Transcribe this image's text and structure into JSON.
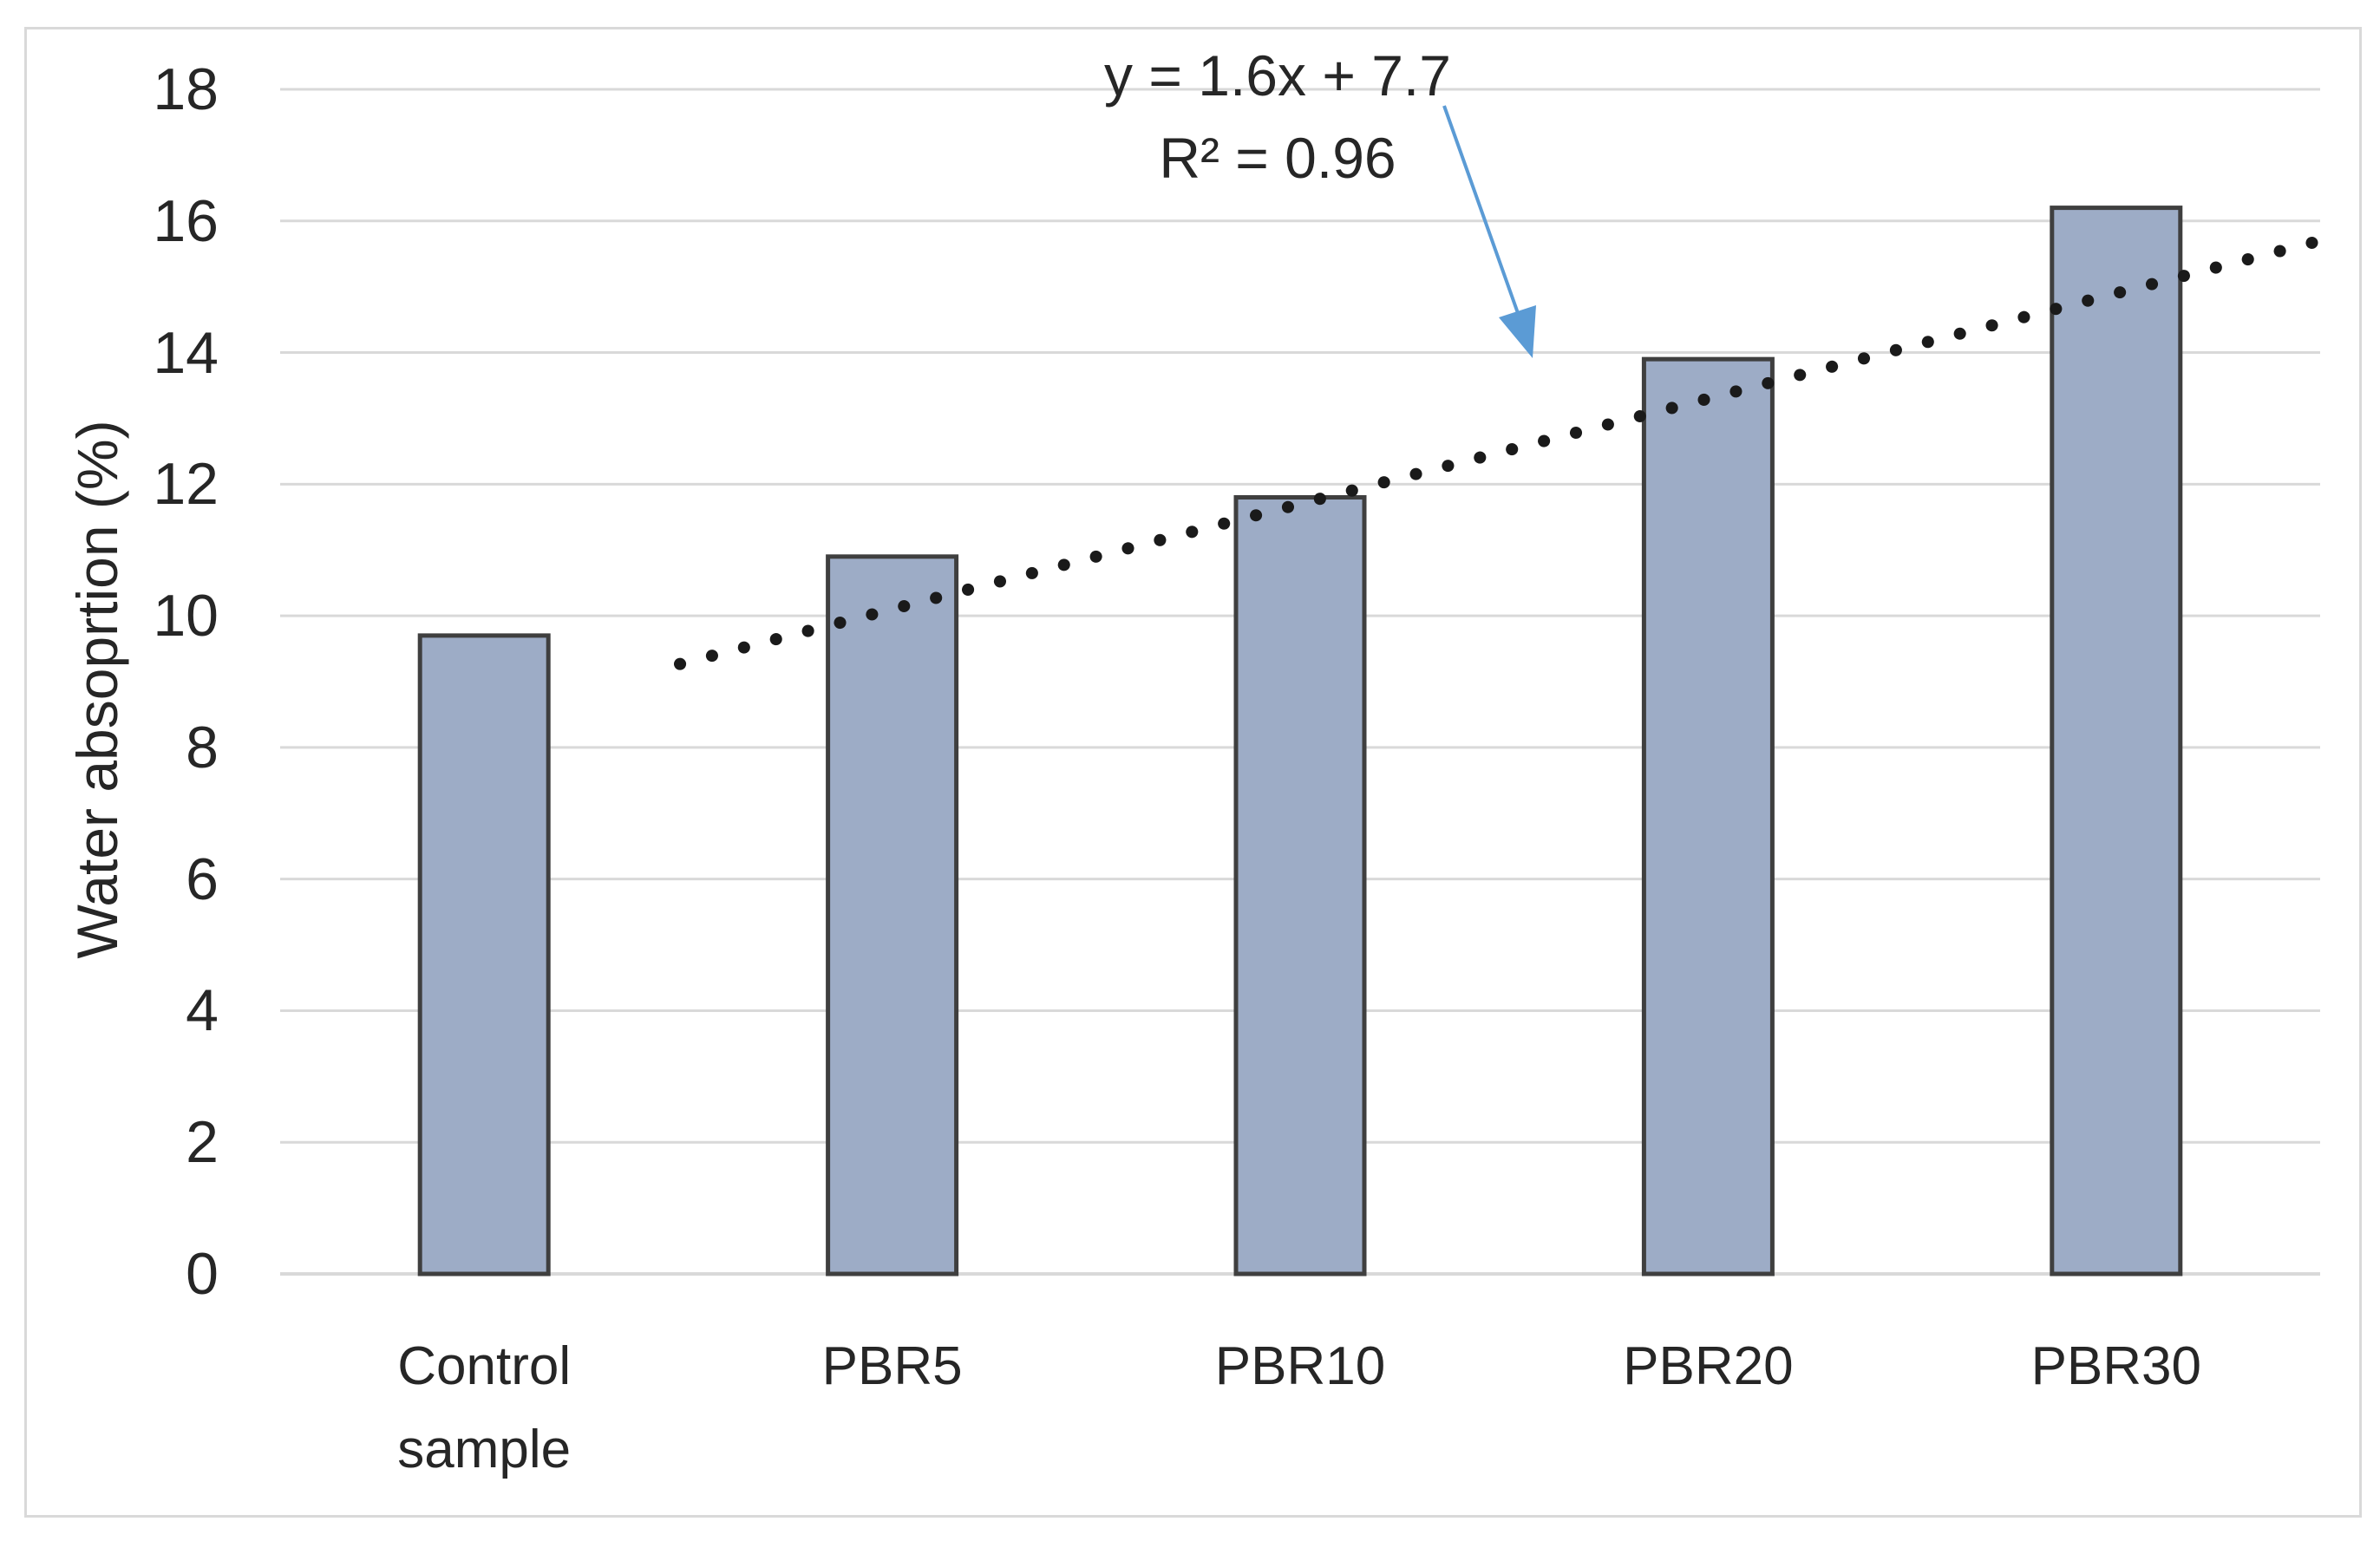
{
  "chart_data": {
    "type": "bar",
    "categories": [
      "Control sample",
      "PBR5",
      "PBR10",
      "PBR20",
      "PBR30"
    ],
    "categories_display": [
      "Control\nsample",
      "PBR5",
      "PBR10",
      "PBR20",
      "PBR30"
    ],
    "values": [
      9.7,
      10.9,
      11.8,
      13.9,
      16.2
    ],
    "title": "",
    "xlabel": "",
    "ylabel": "Water absoprtion (%)",
    "ylim": [
      0,
      18
    ],
    "ytick_step": 2,
    "ytick_labels": [
      "0",
      "2",
      "4",
      "6",
      "8",
      "10",
      "12",
      "14",
      "16",
      "18"
    ],
    "grid": true,
    "legend": "none",
    "trendline": {
      "style": "dotted",
      "slope": 1.6,
      "intercept": 7.7,
      "equation_label": "y = 1.6x + 7.7",
      "r_squared_label": "R² = 0.96"
    }
  },
  "annotation": {
    "line1": "y = 1.6x + 7.7",
    "line2": "R² = 0.96"
  },
  "colors": {
    "bar_fill": "#9dacc6",
    "bar_border": "#3f3f3f",
    "gridline": "#d9d9d9",
    "axis_line": "#d9d9d9",
    "chart_border": "#d9d9d9",
    "trendline_dots": "#1a1a1a",
    "arrow": "#5b9bd5",
    "text": "#262626",
    "background": "#ffffff"
  }
}
